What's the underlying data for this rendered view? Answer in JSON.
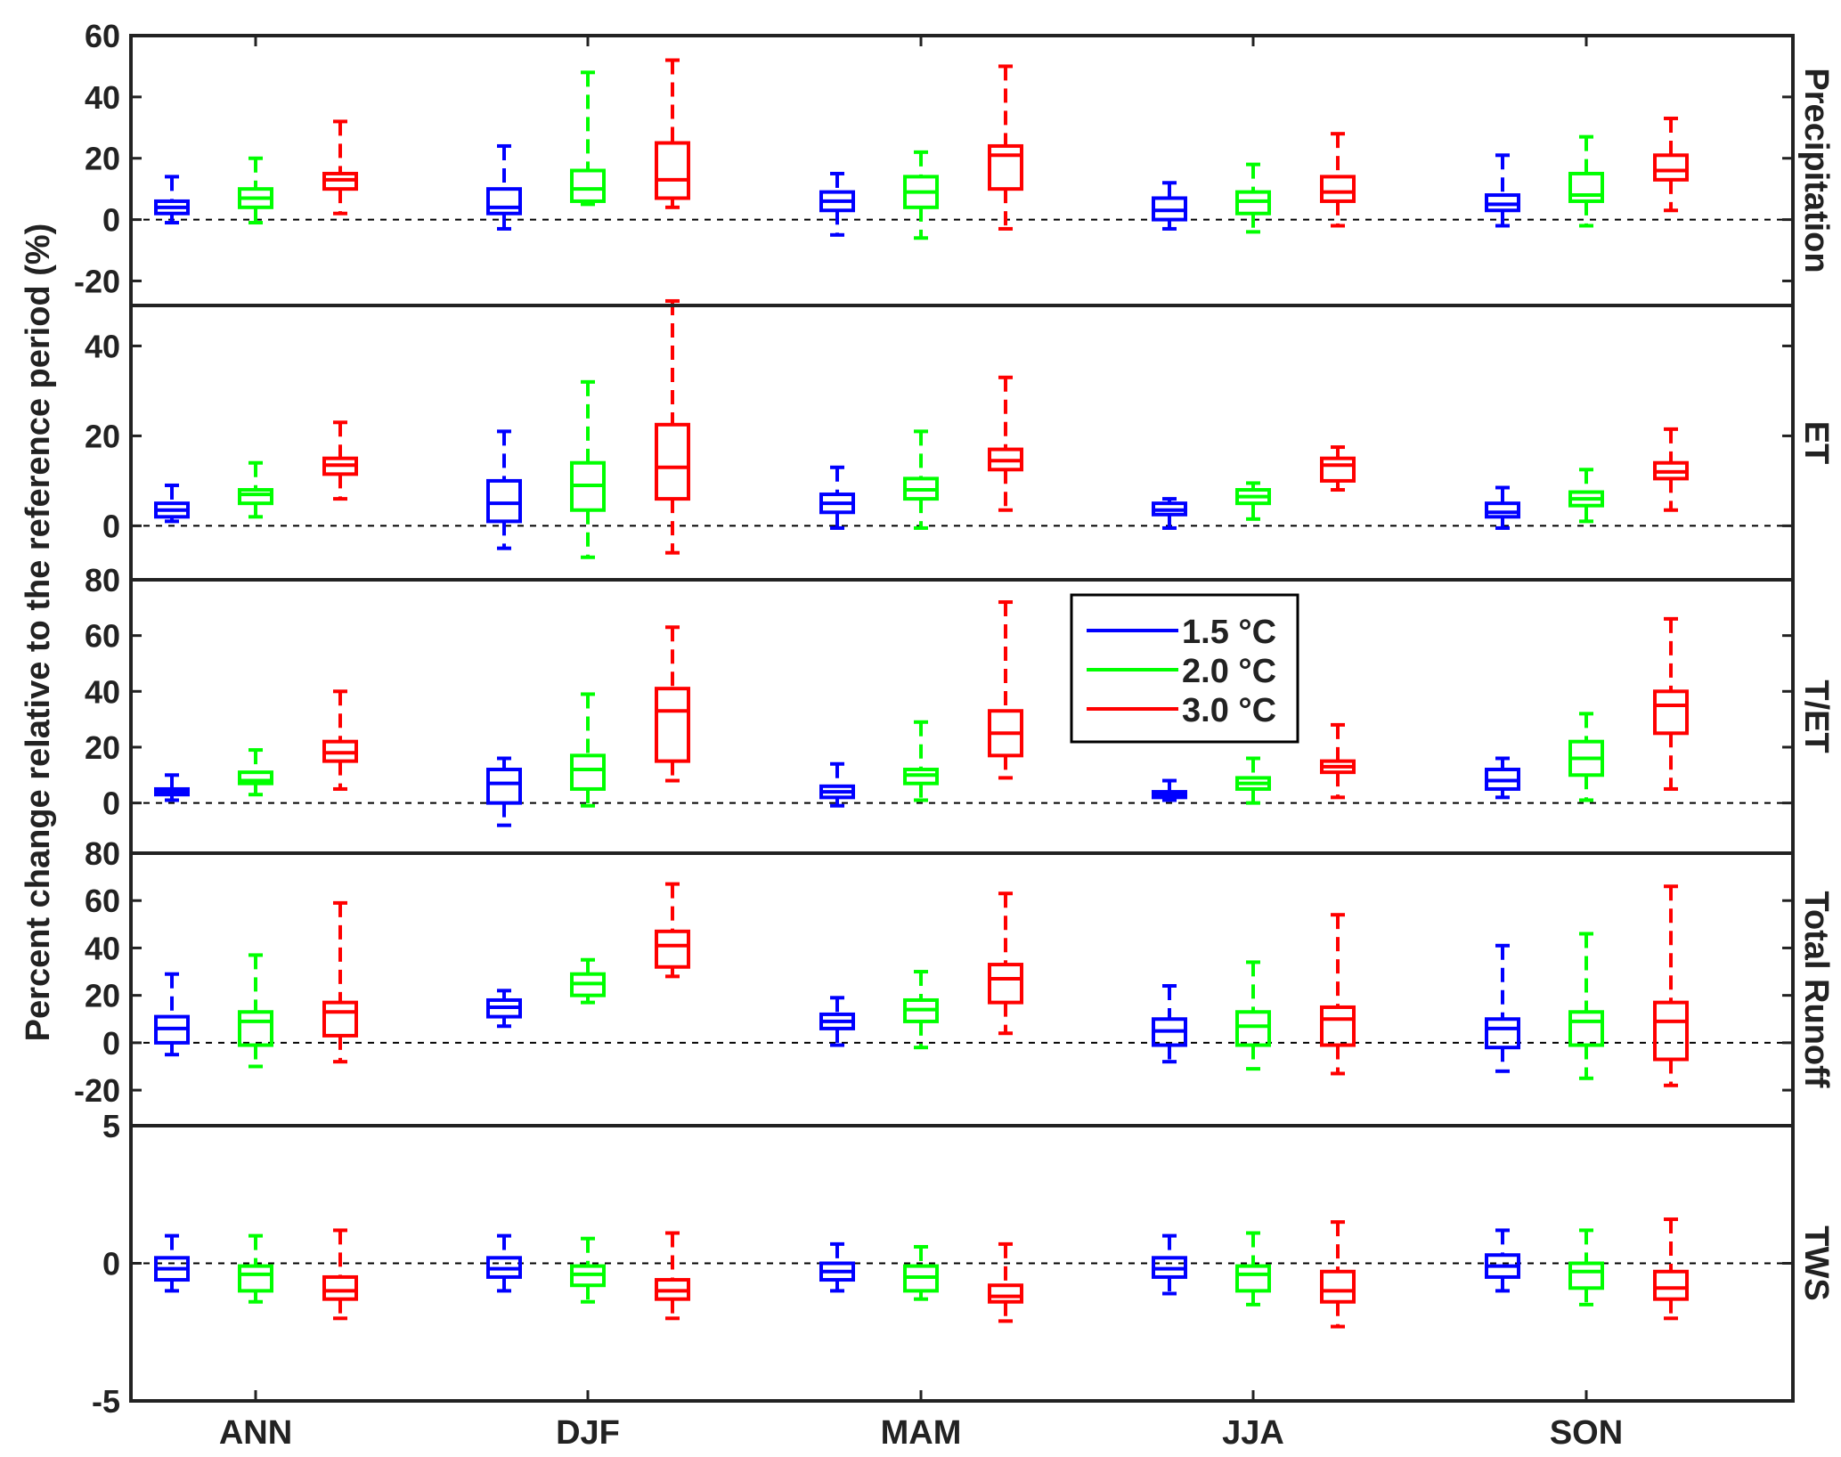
{
  "colors": {
    "1.5": "#0000ff",
    "2.0": "#00ff00",
    "3.0": "#ff0000",
    "axis": "#222222"
  },
  "chart_data": {
    "type": "boxplot",
    "ylabel": "Percent change relative to the reference period (%)",
    "categories": [
      "ANN",
      "DJF",
      "MAM",
      "JJA",
      "SON"
    ],
    "legend": {
      "placement": "inside-center (T/ET panel)",
      "entries": [
        {
          "key": "1.5",
          "label": "1.5 °C"
        },
        {
          "key": "2.0",
          "label": "2.0 °C"
        },
        {
          "key": "3.0",
          "label": "3.0 °C"
        }
      ]
    },
    "panels": [
      {
        "name": "Precipitation",
        "ylim": [
          -28,
          60
        ],
        "yticks": [
          -20,
          0,
          20,
          40,
          60
        ],
        "yticklabels": [
          "-20",
          "0",
          "20",
          "40",
          "60"
        ],
        "boxes": [
          [
            [
              -1,
              2,
              4,
              6,
              14
            ],
            [
              -1,
              4,
              7,
              10,
              20
            ],
            [
              2,
              10,
              13,
              15,
              32
            ]
          ],
          [
            [
              -3,
              2,
              4,
              10,
              24
            ],
            [
              5,
              6,
              10,
              16,
              48
            ],
            [
              4,
              7,
              13,
              25,
              52
            ]
          ],
          [
            [
              -5,
              3,
              6,
              9,
              15
            ],
            [
              -6,
              4,
              9,
              14,
              22
            ],
            [
              -3,
              10,
              21,
              24,
              50
            ]
          ],
          [
            [
              -3,
              0,
              3,
              7,
              12
            ],
            [
              -4,
              2,
              6,
              9,
              18
            ],
            [
              -2,
              6,
              9,
              14,
              28
            ]
          ],
          [
            [
              -2,
              3,
              5,
              8,
              21
            ],
            [
              -2,
              6,
              8,
              15,
              27
            ],
            [
              3,
              13,
              16,
              21,
              33
            ]
          ]
        ]
      },
      {
        "name": "ET",
        "ylim": [
          -12,
          49
        ],
        "yticks": [
          0,
          20,
          40
        ],
        "yticklabels": [
          "0",
          "20",
          "40"
        ],
        "boxes": [
          [
            [
              1,
              2,
              3.5,
              5,
              9
            ],
            [
              2,
              5,
              7,
              8,
              14
            ],
            [
              6,
              11.5,
              13.5,
              15,
              23
            ]
          ],
          [
            [
              -5,
              1,
              5,
              10,
              21
            ],
            [
              -7,
              3.5,
              9,
              14,
              32
            ],
            [
              -6,
              6,
              13,
              22.5,
              50
            ]
          ],
          [
            [
              -0.5,
              3,
              5,
              7,
              13
            ],
            [
              -0.5,
              6,
              8,
              10.5,
              21
            ],
            [
              3.5,
              12.5,
              14.5,
              17,
              33
            ]
          ],
          [
            [
              -0.5,
              2.5,
              3.5,
              5,
              6
            ],
            [
              1.5,
              5,
              6.5,
              8,
              9.5
            ],
            [
              8,
              10,
              13.5,
              15,
              17.5
            ]
          ],
          [
            [
              -0.5,
              2,
              3,
              5,
              8.5
            ],
            [
              1,
              4.5,
              6,
              7.5,
              12.5
            ],
            [
              3.5,
              10.5,
              12,
              14,
              21.5
            ]
          ]
        ]
      },
      {
        "name": "T/ET",
        "ylim": [
          -18,
          80
        ],
        "yticks": [
          0,
          20,
          40,
          60,
          80
        ],
        "yticklabels": [
          "0",
          "20",
          "40",
          "60",
          "80"
        ],
        "boxes": [
          [
            [
              1,
              3,
              4,
              5,
              10
            ],
            [
              3,
              7,
              8,
              11,
              19
            ],
            [
              5,
              15,
              18,
              22,
              40
            ]
          ],
          [
            [
              -8,
              0,
              7,
              12,
              16
            ],
            [
              -1,
              5,
              12,
              17,
              39
            ],
            [
              8,
              15,
              33,
              41,
              63
            ]
          ],
          [
            [
              -1,
              2,
              4,
              6,
              14
            ],
            [
              1,
              7,
              10,
              12,
              29
            ],
            [
              9,
              17,
              25,
              33,
              72
            ]
          ],
          [
            [
              1,
              2,
              3,
              4,
              8
            ],
            [
              0,
              5,
              7,
              9,
              16
            ],
            [
              2,
              11,
              13,
              15,
              28
            ]
          ],
          [
            [
              2,
              5,
              8,
              12,
              16
            ],
            [
              1,
              10,
              16,
              22,
              32
            ],
            [
              5,
              25,
              35,
              40,
              66
            ]
          ]
        ]
      },
      {
        "name": "Total Runoff",
        "ylim": [
          -35,
          80
        ],
        "yticks": [
          -20,
          0,
          20,
          40,
          60,
          80
        ],
        "yticklabels": [
          "-20",
          "0",
          "20",
          "40",
          "60",
          "80"
        ],
        "boxes": [
          [
            [
              -5,
              0,
              6,
              11,
              29
            ],
            [
              -10,
              -1,
              9,
              13,
              37
            ],
            [
              -8,
              3,
              13,
              17,
              59
            ]
          ],
          [
            [
              7,
              11,
              15,
              18,
              22
            ],
            [
              17,
              20,
              25,
              29,
              35
            ],
            [
              28,
              32,
              41,
              47,
              67
            ]
          ],
          [
            [
              -1,
              6,
              9,
              12,
              19
            ],
            [
              -2,
              9,
              14,
              18,
              30
            ],
            [
              4,
              17,
              27,
              33,
              63
            ]
          ],
          [
            [
              -8,
              -1,
              5,
              10,
              24
            ],
            [
              -11,
              -1,
              7,
              13,
              34
            ],
            [
              -13,
              -1,
              10,
              15,
              54
            ]
          ],
          [
            [
              -12,
              -2,
              6,
              10,
              41
            ],
            [
              -15,
              -1,
              9,
              13,
              46
            ],
            [
              -18,
              -7,
              9,
              17,
              66
            ]
          ]
        ]
      },
      {
        "name": "TWS",
        "ylim": [
          -5,
          5
        ],
        "yticks": [
          -5,
          0,
          5
        ],
        "yticklabels": [
          "-5",
          "0",
          "5"
        ],
        "boxes": [
          [
            [
              -1.0,
              -0.6,
              -0.2,
              0.2,
              1.0
            ],
            [
              -1.4,
              -1.0,
              -0.4,
              -0.1,
              1.0
            ],
            [
              -2.0,
              -1.3,
              -1.0,
              -0.5,
              1.2
            ]
          ],
          [
            [
              -1.0,
              -0.5,
              -0.2,
              0.2,
              1.0
            ],
            [
              -1.4,
              -0.8,
              -0.4,
              -0.1,
              0.9
            ],
            [
              -2.0,
              -1.3,
              -1.0,
              -0.6,
              1.1
            ]
          ],
          [
            [
              -1.0,
              -0.6,
              -0.3,
              0.0,
              0.7
            ],
            [
              -1.3,
              -1.0,
              -0.5,
              -0.1,
              0.6
            ],
            [
              -2.1,
              -1.4,
              -1.2,
              -0.8,
              0.7
            ]
          ],
          [
            [
              -1.1,
              -0.5,
              -0.2,
              0.2,
              1.0
            ],
            [
              -1.5,
              -1.0,
              -0.4,
              -0.1,
              1.1
            ],
            [
              -2.3,
              -1.4,
              -1.0,
              -0.3,
              1.5
            ]
          ],
          [
            [
              -1.0,
              -0.5,
              -0.1,
              0.3,
              1.2
            ],
            [
              -1.5,
              -0.9,
              -0.3,
              0.0,
              1.2
            ],
            [
              -2.0,
              -1.3,
              -0.9,
              -0.3,
              1.6
            ]
          ]
        ]
      }
    ]
  }
}
